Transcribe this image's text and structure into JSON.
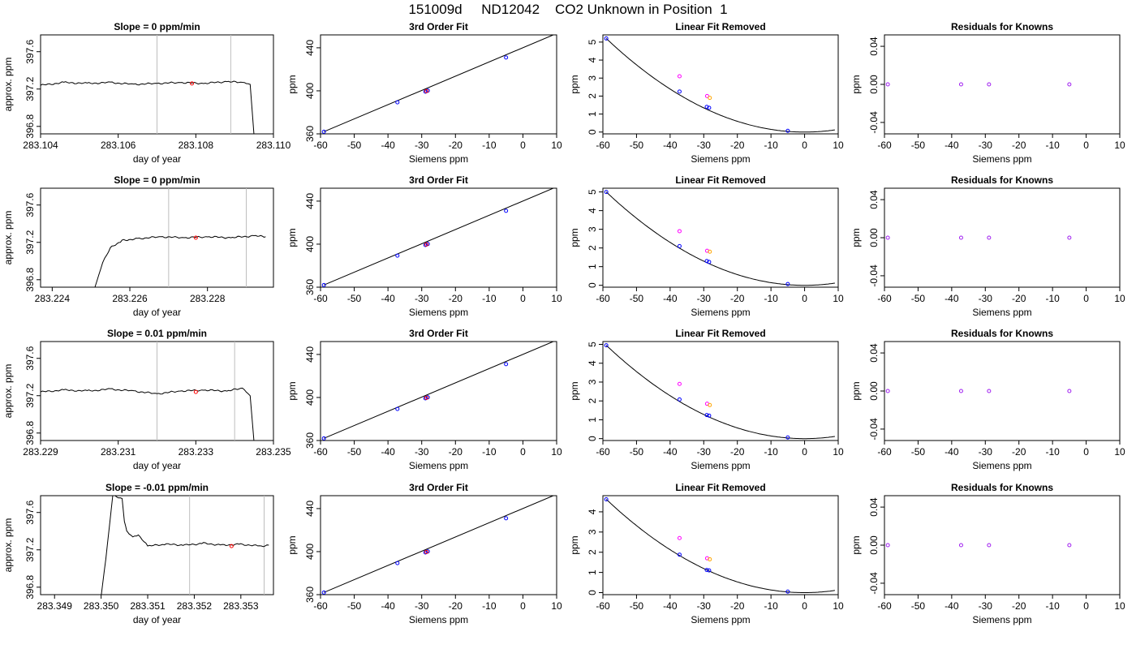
{
  "title": "151009d     ND12042    CO2 Unknown in Position  1",
  "colors": {
    "line": "#000000",
    "frame": "#000000",
    "vline": "#bebebe",
    "known": "#0000ff",
    "unknown_pt": "#ff0000",
    "marker_orange": "#ffa500",
    "marker_magenta": "#ff00ff",
    "resid": "#a020f0"
  },
  "chart_data": [
    {
      "type": "line",
      "panel": "timeseries",
      "row": 0,
      "title": "Slope =  0  ppm/min",
      "xlabel": "day of year",
      "ylabel": "approx. ppm",
      "xlim": [
        283.104,
        283.11
      ],
      "ylim": [
        396.72,
        397.78
      ],
      "xticks": [
        283.104,
        283.106,
        283.108,
        283.11
      ],
      "xticklabels": [
        "283.104",
        "283.106",
        "283.108",
        "283.110"
      ],
      "yticks": [
        396.8,
        397.2,
        397.6
      ],
      "yticklabels": [
        "396.8",
        "397.2",
        "397.6"
      ],
      "vlines": [
        283.107,
        283.1089
      ],
      "series": [
        {
          "x": [
            283.104,
            283.1046,
            283.1052,
            283.1058,
            283.1064,
            283.107,
            283.1076,
            283.1082,
            283.1088,
            283.1092,
            283.1094,
            283.1095
          ],
          "y": [
            397.24,
            397.27,
            397.26,
            397.27,
            397.25,
            397.26,
            397.27,
            397.26,
            397.28,
            397.27,
            397.25,
            396.7
          ]
        }
      ],
      "marker": {
        "x": 283.1079,
        "y": 397.26
      }
    },
    {
      "type": "line",
      "panel": "fit",
      "row": 0,
      "title": "3rd Order Fit",
      "xlabel": "Siemens ppm",
      "ylabel": "ppm",
      "xlim": [
        -60,
        10
      ],
      "ylim": [
        360,
        452
      ],
      "xticks": [
        -60,
        -50,
        -40,
        -30,
        -20,
        -10,
        0,
        10
      ],
      "xticklabels": [
        "-60",
        "-50",
        "-40",
        "-30",
        "-20",
        "-10",
        "0",
        "10"
      ],
      "yticks": [
        360,
        400,
        440
      ],
      "yticklabels": [
        "360",
        "400",
        "440"
      ],
      "line": {
        "x": [
          -59,
          9
        ],
        "y": [
          362,
          452
        ]
      },
      "points": {
        "x": [
          -59,
          -37.2,
          -28.9,
          -28.2,
          -5
        ],
        "y": [
          362,
          389.3,
          399.2,
          400.2,
          431
        ]
      },
      "marker": {
        "x": -28.6,
        "y": 399.7
      }
    },
    {
      "type": "scatter",
      "panel": "linfit",
      "row": 0,
      "title": "Linear Fit Removed",
      "xlabel": "Siemens ppm",
      "ylabel": "ppm",
      "xlim": [
        -60,
        10
      ],
      "ylim": [
        -0.1,
        5.4
      ],
      "xticks": [
        -60,
        -50,
        -40,
        -30,
        -20,
        -10,
        0,
        10
      ],
      "xticklabels": [
        "-60",
        "-50",
        "-40",
        "-30",
        "-20",
        "-10",
        "0",
        "10"
      ],
      "yticks": [
        0,
        1,
        2,
        3,
        4,
        5
      ],
      "yticklabels": [
        "0",
        "1",
        "2",
        "3",
        "4",
        "5"
      ],
      "peak": 5.2,
      "knowns": {
        "x": [
          -59,
          -37.2,
          -29.1,
          -28.4,
          -5
        ],
        "y": [
          5.2,
          2.25,
          1.4,
          1.35,
          0.07
        ]
      },
      "magenta": {
        "x": [
          -37.2,
          -29
        ],
        "y": [
          3.1,
          2
        ]
      },
      "orange": {
        "x": [
          -28.2
        ],
        "y": [
          1.9
        ]
      }
    },
    {
      "type": "scatter",
      "panel": "resid",
      "row": 0,
      "title": "Residuals for Knowns",
      "xlabel": "Siemens ppm",
      "ylabel": "ppm",
      "xlim": [
        -60,
        10
      ],
      "ylim": [
        -0.052,
        0.052
      ],
      "xticks": [
        -60,
        -50,
        -40,
        -30,
        -20,
        -10,
        0,
        10
      ],
      "xticklabels": [
        "-60",
        "-50",
        "-40",
        "-30",
        "-20",
        "-10",
        "0",
        "10"
      ],
      "yticks": [
        -0.04,
        0,
        0.04
      ],
      "yticklabels": [
        "-0.04",
        "0.00",
        "0.04"
      ],
      "points": {
        "x": [
          -59,
          -37.2,
          -28.9,
          -5
        ],
        "y": [
          0,
          0,
          0,
          0
        ]
      }
    },
    {
      "type": "line",
      "panel": "timeseries",
      "row": 1,
      "title": "Slope =  0  ppm/min",
      "xlabel": "day of year",
      "ylabel": "approx. ppm",
      "xlim": [
        283.2237,
        283.2297
      ],
      "ylim": [
        396.72,
        397.78
      ],
      "xticks": [
        283.224,
        283.226,
        283.228
      ],
      "xticklabels": [
        "283.224",
        "283.226",
        "283.228"
      ],
      "yticks": [
        396.8,
        397.2,
        397.6
      ],
      "yticklabels": [
        "396.8",
        "397.2",
        "397.6"
      ],
      "vlines": [
        283.227,
        283.229
      ],
      "series": [
        {
          "x": [
            283.2251,
            283.2253,
            283.2255,
            283.2258,
            283.2262,
            283.2268,
            283.2274,
            283.228,
            283.2286,
            283.2292,
            283.2295
          ],
          "y": [
            396.72,
            396.98,
            397.14,
            397.22,
            397.24,
            397.26,
            397.25,
            397.26,
            397.25,
            397.27,
            397.26
          ]
        }
      ],
      "marker": {
        "x": 283.2277,
        "y": 397.25
      }
    },
    {
      "type": "line",
      "panel": "fit",
      "row": 1,
      "title": "3rd Order Fit",
      "xlabel": "Siemens ppm",
      "ylabel": "ppm",
      "xlim": [
        -60,
        10
      ],
      "ylim": [
        360,
        452
      ],
      "xticks": [
        -60,
        -50,
        -40,
        -30,
        -20,
        -10,
        0,
        10
      ],
      "xticklabels": [
        "-60",
        "-50",
        "-40",
        "-30",
        "-20",
        "-10",
        "0",
        "10"
      ],
      "yticks": [
        360,
        400,
        440
      ],
      "yticklabels": [
        "360",
        "400",
        "440"
      ],
      "line": {
        "x": [
          -59,
          9
        ],
        "y": [
          362,
          452
        ]
      },
      "points": {
        "x": [
          -59,
          -37.2,
          -28.9,
          -28.2,
          -5
        ],
        "y": [
          362,
          389.3,
          399.2,
          400.2,
          431
        ]
      },
      "marker": {
        "x": -28.6,
        "y": 399.7
      }
    },
    {
      "type": "scatter",
      "panel": "linfit",
      "row": 1,
      "title": "Linear Fit Removed",
      "xlabel": "Siemens ppm",
      "ylabel": "ppm",
      "xlim": [
        -60,
        10
      ],
      "ylim": [
        -0.1,
        5.2
      ],
      "xticks": [
        -60,
        -50,
        -40,
        -30,
        -20,
        -10,
        0,
        10
      ],
      "xticklabels": [
        "-60",
        "-50",
        "-40",
        "-30",
        "-20",
        "-10",
        "0",
        "10"
      ],
      "yticks": [
        0,
        1,
        2,
        3,
        4,
        5
      ],
      "yticklabels": [
        "0",
        "1",
        "2",
        "3",
        "4",
        "5"
      ],
      "peak": 5.0,
      "knowns": {
        "x": [
          -59,
          -37.2,
          -29.1,
          -28.4,
          -5
        ],
        "y": [
          5.0,
          2.1,
          1.3,
          1.25,
          0.07
        ]
      },
      "magenta": {
        "x": [
          -37.2,
          -29
        ],
        "y": [
          2.9,
          1.85
        ]
      },
      "orange": {
        "x": [
          -28.2
        ],
        "y": [
          1.8
        ]
      }
    },
    {
      "type": "scatter",
      "panel": "resid",
      "row": 1,
      "title": "Residuals for Knowns",
      "xlabel": "Siemens ppm",
      "ylabel": "ppm",
      "xlim": [
        -60,
        10
      ],
      "ylim": [
        -0.052,
        0.052
      ],
      "xticks": [
        -60,
        -50,
        -40,
        -30,
        -20,
        -10,
        0,
        10
      ],
      "xticklabels": [
        "-60",
        "-50",
        "-40",
        "-30",
        "-20",
        "-10",
        "0",
        "10"
      ],
      "yticks": [
        -0.04,
        0,
        0.04
      ],
      "yticklabels": [
        "-0.04",
        "0.00",
        "0.04"
      ],
      "points": {
        "x": [
          -59,
          -37.2,
          -28.9,
          -5
        ],
        "y": [
          0,
          0,
          0,
          0
        ]
      }
    },
    {
      "type": "line",
      "panel": "timeseries",
      "row": 2,
      "title": "Slope =  0.01  ppm/min",
      "xlabel": "day of year",
      "ylabel": "approx. ppm",
      "xlim": [
        283.229,
        283.235
      ],
      "ylim": [
        396.72,
        397.78
      ],
      "xticks": [
        283.229,
        283.231,
        283.233,
        283.235
      ],
      "xticklabels": [
        "283.229",
        "283.231",
        "283.233",
        "283.235"
      ],
      "yticks": [
        396.8,
        397.2,
        397.6
      ],
      "yticklabels": [
        "396.8",
        "397.2",
        "397.6"
      ],
      "vlines": [
        283.232,
        283.234
      ],
      "series": [
        {
          "x": [
            283.229,
            283.2296,
            283.2302,
            283.2308,
            283.2314,
            283.232,
            283.2326,
            283.2332,
            283.2338,
            283.2342,
            283.2344,
            283.2345
          ],
          "y": [
            397.24,
            397.26,
            397.25,
            397.27,
            397.25,
            397.22,
            397.25,
            397.26,
            397.25,
            397.28,
            397.2,
            396.7
          ]
        }
      ],
      "marker": {
        "x": 283.233,
        "y": 397.24
      }
    },
    {
      "type": "line",
      "panel": "fit",
      "row": 2,
      "title": "3rd Order Fit",
      "xlabel": "Siemens ppm",
      "ylabel": "ppm",
      "xlim": [
        -60,
        10
      ],
      "ylim": [
        360,
        452
      ],
      "xticks": [
        -60,
        -50,
        -40,
        -30,
        -20,
        -10,
        0,
        10
      ],
      "xticklabels": [
        "-60",
        "-50",
        "-40",
        "-30",
        "-20",
        "-10",
        "0",
        "10"
      ],
      "yticks": [
        360,
        400,
        440
      ],
      "yticklabels": [
        "360",
        "400",
        "440"
      ],
      "line": {
        "x": [
          -59,
          9
        ],
        "y": [
          362,
          452
        ]
      },
      "points": {
        "x": [
          -59,
          -37.2,
          -28.9,
          -28.2,
          -5
        ],
        "y": [
          362,
          389.3,
          399.2,
          400.2,
          431
        ]
      },
      "marker": {
        "x": -28.6,
        "y": 399.7
      }
    },
    {
      "type": "scatter",
      "panel": "linfit",
      "row": 2,
      "title": "Linear Fit Removed",
      "xlabel": "Siemens ppm",
      "ylabel": "ppm",
      "xlim": [
        -60,
        10
      ],
      "ylim": [
        -0.1,
        5.15
      ],
      "xticks": [
        -60,
        -50,
        -40,
        -30,
        -20,
        -10,
        0,
        10
      ],
      "xticklabels": [
        "-60",
        "-50",
        "-40",
        "-30",
        "-20",
        "-10",
        "0",
        "10"
      ],
      "yticks": [
        0,
        1,
        2,
        3,
        4,
        5
      ],
      "yticklabels": [
        "0",
        "1",
        "2",
        "3",
        "4",
        "5"
      ],
      "peak": 4.95,
      "knowns": {
        "x": [
          -59,
          -37.2,
          -29.1,
          -28.4,
          -5
        ],
        "y": [
          4.95,
          2.08,
          1.25,
          1.22,
          0.06
        ]
      },
      "magenta": {
        "x": [
          -37.2,
          -29
        ],
        "y": [
          2.9,
          1.85
        ]
      },
      "orange": {
        "x": [
          -28.2
        ],
        "y": [
          1.78
        ]
      }
    },
    {
      "type": "scatter",
      "panel": "resid",
      "row": 2,
      "title": "Residuals for Knowns",
      "xlabel": "Siemens ppm",
      "ylabel": "ppm",
      "xlim": [
        -60,
        10
      ],
      "ylim": [
        -0.052,
        0.052
      ],
      "xticks": [
        -60,
        -50,
        -40,
        -30,
        -20,
        -10,
        0,
        10
      ],
      "xticklabels": [
        "-60",
        "-50",
        "-40",
        "-30",
        "-20",
        "-10",
        "0",
        "10"
      ],
      "yticks": [
        -0.04,
        0,
        0.04
      ],
      "yticklabels": [
        "-0.04",
        "0.00",
        "0.04"
      ],
      "points": {
        "x": [
          -59,
          -37.2,
          -28.9,
          -5
        ],
        "y": [
          0,
          0,
          0,
          0
        ]
      }
    },
    {
      "type": "line",
      "panel": "timeseries",
      "row": 3,
      "title": "Slope =  -0.01  ppm/min",
      "xlabel": "day of year",
      "ylabel": "approx. ppm",
      "xlim": [
        283.3487,
        283.3537
      ],
      "ylim": [
        396.72,
        397.78
      ],
      "xticks": [
        283.349,
        283.35,
        283.351,
        283.352,
        283.353
      ],
      "xticklabels": [
        "283.349",
        "283.350",
        "283.351",
        "283.352",
        "283.353"
      ],
      "yticks": [
        396.8,
        397.2,
        397.6
      ],
      "yticklabels": [
        "396.8",
        "397.2",
        "397.6"
      ],
      "vlines": [
        283.3519,
        283.3535
      ],
      "series": [
        {
          "x": [
            283.35,
            283.3501,
            283.35025,
            283.35045,
            283.3505,
            283.35055,
            283.3506,
            283.35068,
            283.3508,
            283.351,
            283.3514,
            283.3518,
            283.3522,
            283.3526,
            283.353,
            283.3534,
            283.3536
          ],
          "y": [
            396.7,
            397.1,
            397.78,
            397.75,
            397.5,
            397.4,
            397.37,
            397.34,
            397.36,
            397.24,
            397.26,
            397.25,
            397.27,
            397.25,
            397.26,
            397.24,
            397.25
          ]
        }
      ],
      "marker": {
        "x": 283.3528,
        "y": 397.24
      }
    },
    {
      "type": "line",
      "panel": "fit",
      "row": 3,
      "title": "3rd Order Fit",
      "xlabel": "Siemens ppm",
      "ylabel": "ppm",
      "xlim": [
        -60,
        10
      ],
      "ylim": [
        360,
        452
      ],
      "xticks": [
        -60,
        -50,
        -40,
        -30,
        -20,
        -10,
        0,
        10
      ],
      "xticklabels": [
        "-60",
        "-50",
        "-40",
        "-30",
        "-20",
        "-10",
        "0",
        "10"
      ],
      "yticks": [
        360,
        400,
        440
      ],
      "yticklabels": [
        "360",
        "400",
        "440"
      ],
      "line": {
        "x": [
          -59,
          9
        ],
        "y": [
          362,
          452
        ]
      },
      "points": {
        "x": [
          -59,
          -37.2,
          -28.9,
          -28.2,
          -5
        ],
        "y": [
          362,
          389.3,
          399.2,
          400.2,
          431
        ]
      },
      "marker": {
        "x": -28.6,
        "y": 399.7
      }
    },
    {
      "type": "scatter",
      "panel": "linfit",
      "row": 3,
      "title": "Linear Fit Removed",
      "xlabel": "Siemens ppm",
      "ylabel": "ppm",
      "xlim": [
        -60,
        10
      ],
      "ylim": [
        -0.1,
        4.8
      ],
      "xticks": [
        -60,
        -50,
        -40,
        -30,
        -20,
        -10,
        0,
        10
      ],
      "xticklabels": [
        "-60",
        "-50",
        "-40",
        "-30",
        "-20",
        "-10",
        "0",
        "10"
      ],
      "yticks": [
        0,
        1,
        2,
        3,
        4
      ],
      "yticklabels": [
        "0",
        "1",
        "2",
        "3",
        "4"
      ],
      "peak": 4.62,
      "knowns": {
        "x": [
          -59,
          -37.2,
          -29.1,
          -28.4,
          -5
        ],
        "y": [
          4.62,
          1.88,
          1.12,
          1.1,
          0.05
        ]
      },
      "magenta": {
        "x": [
          -37.2,
          -29
        ],
        "y": [
          2.7,
          1.7
        ]
      },
      "orange": {
        "x": [
          -28.2
        ],
        "y": [
          1.65
        ]
      }
    },
    {
      "type": "scatter",
      "panel": "resid",
      "row": 3,
      "title": "Residuals for Knowns",
      "xlabel": "Siemens ppm",
      "ylabel": "ppm",
      "xlim": [
        -60,
        10
      ],
      "ylim": [
        -0.052,
        0.052
      ],
      "xticks": [
        -60,
        -50,
        -40,
        -30,
        -20,
        -10,
        0,
        10
      ],
      "xticklabels": [
        "-60",
        "-50",
        "-40",
        "-30",
        "-20",
        "-10",
        "0",
        "10"
      ],
      "yticks": [
        -0.04,
        0,
        0.04
      ],
      "yticklabels": [
        "-0.04",
        "0.00",
        "0.04"
      ],
      "points": {
        "x": [
          -59,
          -37.2,
          -28.9,
          -5
        ],
        "y": [
          0,
          0,
          0,
          0
        ]
      }
    }
  ]
}
